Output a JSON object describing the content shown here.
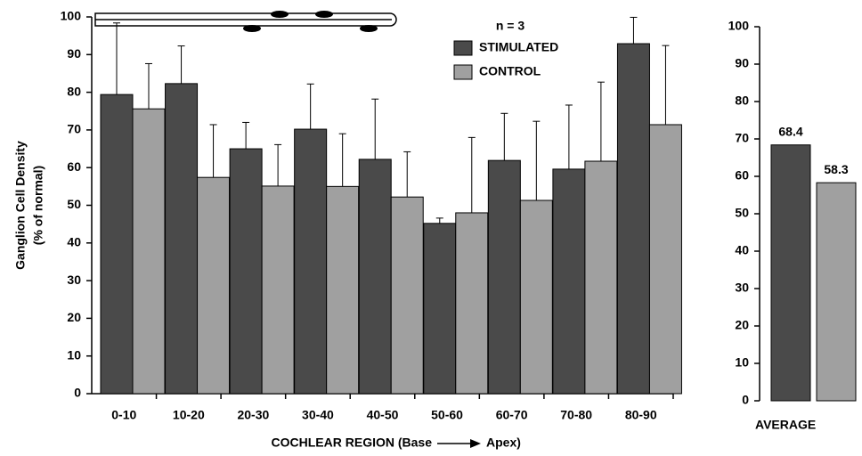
{
  "chart_data": [
    {
      "type": "bar",
      "y_label": [
        "Ganglion Cell Density",
        "(% of normal)"
      ],
      "x_label": [
        "COCHLEAR REGION  (Base",
        "Apex)"
      ],
      "annotation": "n = 3",
      "categories": [
        "0-10",
        "10-20",
        "20-30",
        "30-40",
        "40-50",
        "50-60",
        "60-70",
        "70-80",
        "80-90"
      ],
      "series": [
        {
          "name": "STIMULATED",
          "color": "#4a4a4a",
          "values": [
            79.4,
            82.3,
            65,
            70.2,
            62.2,
            45.2,
            61.9,
            59.6,
            92.9
          ],
          "errors": [
            19,
            10,
            7,
            12,
            16,
            1.4,
            12.5,
            17,
            7
          ]
        },
        {
          "name": "CONTROL",
          "color": "#a0a0a0",
          "values": [
            75.6,
            57.4,
            55.1,
            55,
            52.2,
            48,
            51.3,
            61.7,
            71.4
          ],
          "errors": [
            12,
            14,
            11,
            14,
            12,
            20,
            21,
            21,
            21
          ]
        }
      ],
      "ylim": [
        0,
        100
      ],
      "yticks": [
        0,
        10,
        20,
        30,
        40,
        50,
        60,
        70,
        80,
        90,
        100
      ]
    },
    {
      "type": "bar",
      "categories": [
        "AVERAGE"
      ],
      "series": [
        {
          "name": "STIMULATED",
          "color": "#4a4a4a",
          "values": [
            68.4
          ]
        },
        {
          "name": "CONTROL",
          "color": "#a0a0a0",
          "values": [
            58.3
          ]
        }
      ],
      "ylim": [
        0,
        100
      ],
      "yticks": [
        0,
        10,
        20,
        30,
        40,
        50,
        60,
        70,
        80,
        90,
        100
      ]
    }
  ]
}
